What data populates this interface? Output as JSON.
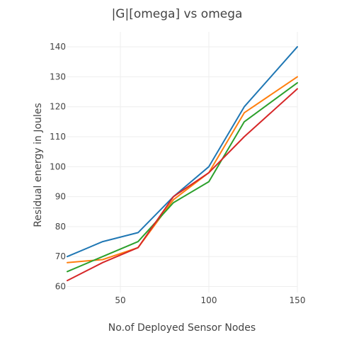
{
  "chart_data": {
    "type": "line",
    "title": "|G|[omega]  vs omega",
    "xlabel": "No.of Deployed Sensor Nodes",
    "ylabel": "Residual energy in Joules",
    "xlim": [
      20,
      150
    ],
    "ylim": [
      58,
      145
    ],
    "xticks": [
      50,
      100,
      150
    ],
    "yticks": [
      60,
      70,
      80,
      90,
      100,
      110,
      120,
      130,
      140
    ],
    "grid": true,
    "legend": "none",
    "x": [
      20,
      40,
      60,
      80,
      100,
      120,
      150
    ],
    "series": [
      {
        "color": "#1f77b4",
        "values": [
          70,
          75,
          78,
          90,
          100,
          120,
          140
        ]
      },
      {
        "color": "#ff7f0e",
        "values": [
          68,
          69,
          73,
          89,
          98,
          118,
          130
        ]
      },
      {
        "color": "#2ca02c",
        "values": [
          65,
          70,
          75,
          88,
          95,
          115,
          128
        ]
      },
      {
        "color": "#d62728",
        "values": [
          62,
          68,
          73,
          90,
          98,
          110,
          126
        ]
      }
    ]
  }
}
